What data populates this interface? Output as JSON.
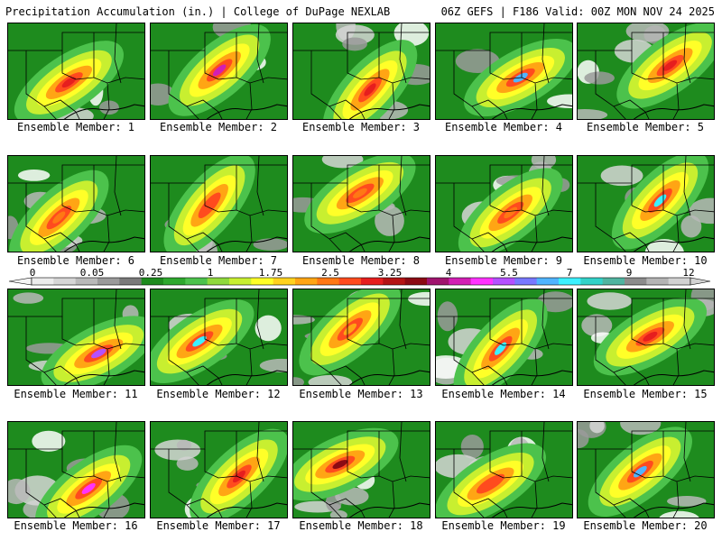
{
  "header": {
    "left_title": "Precipitation Accumulation (in.) | College of DuPage NEXLAB",
    "right_title": "06Z GEFS | F186 Valid: 00Z MON NOV 24 2025"
  },
  "colorbar": {
    "ticks": [
      "0",
      "0.05",
      "0.25",
      "1",
      "1.75",
      "2.5",
      "3.25",
      "4",
      "5.5",
      "7",
      "9",
      "12"
    ],
    "colors": [
      "#ececec",
      "#d6d6d6",
      "#b9b9b9",
      "#9a9a9a",
      "#7a7a7a",
      "#1e8b1e",
      "#2ea82e",
      "#4cc24c",
      "#8fd93c",
      "#c8ef30",
      "#ffff28",
      "#ffd21e",
      "#ffa514",
      "#ff7814",
      "#ff4b1e",
      "#e61e1e",
      "#b41414",
      "#8c0a14",
      "#a0146e",
      "#d21eb4",
      "#ff32ff",
      "#b450ff",
      "#7878ff",
      "#50b4ff",
      "#3cf0ff",
      "#32d2c8",
      "#50b4a0",
      "#8c8c8c",
      "#b4b4b4",
      "#d2d2d2"
    ]
  },
  "members": [
    {
      "label": "Ensemble Member: 1",
      "max_color": "#e61e1e"
    },
    {
      "label": "Ensemble Member: 2",
      "max_color": "#d21eb4"
    },
    {
      "label": "Ensemble Member: 3",
      "max_color": "#e61e1e"
    },
    {
      "label": "Ensemble Member: 4",
      "max_color": "#50b4ff"
    },
    {
      "label": "Ensemble Member: 5",
      "max_color": "#e61e1e"
    },
    {
      "label": "Ensemble Member: 6",
      "max_color": "#ff7814"
    },
    {
      "label": "Ensemble Member: 7",
      "max_color": "#ff4b1e"
    },
    {
      "label": "Ensemble Member: 8",
      "max_color": "#ff7814"
    },
    {
      "label": "Ensemble Member: 9",
      "max_color": "#ff7814"
    },
    {
      "label": "Ensemble Member: 10",
      "max_color": "#3cf0ff"
    },
    {
      "label": "Ensemble Member: 11",
      "max_color": "#b450ff"
    },
    {
      "label": "Ensemble Member: 12",
      "max_color": "#3cf0ff"
    },
    {
      "label": "Ensemble Member: 13",
      "max_color": "#ffa514"
    },
    {
      "label": "Ensemble Member: 14",
      "max_color": "#3cf0ff"
    },
    {
      "label": "Ensemble Member: 15",
      "max_color": "#e61e1e"
    },
    {
      "label": "Ensemble Member: 16",
      "max_color": "#ff32ff"
    },
    {
      "label": "Ensemble Member: 17",
      "max_color": "#e61e1e"
    },
    {
      "label": "Ensemble Member: 18",
      "max_color": "#8c0a14"
    },
    {
      "label": "Ensemble Member: 19",
      "max_color": "#ff4b1e"
    },
    {
      "label": "Ensemble Member: 20",
      "max_color": "#50b4ff"
    }
  ]
}
